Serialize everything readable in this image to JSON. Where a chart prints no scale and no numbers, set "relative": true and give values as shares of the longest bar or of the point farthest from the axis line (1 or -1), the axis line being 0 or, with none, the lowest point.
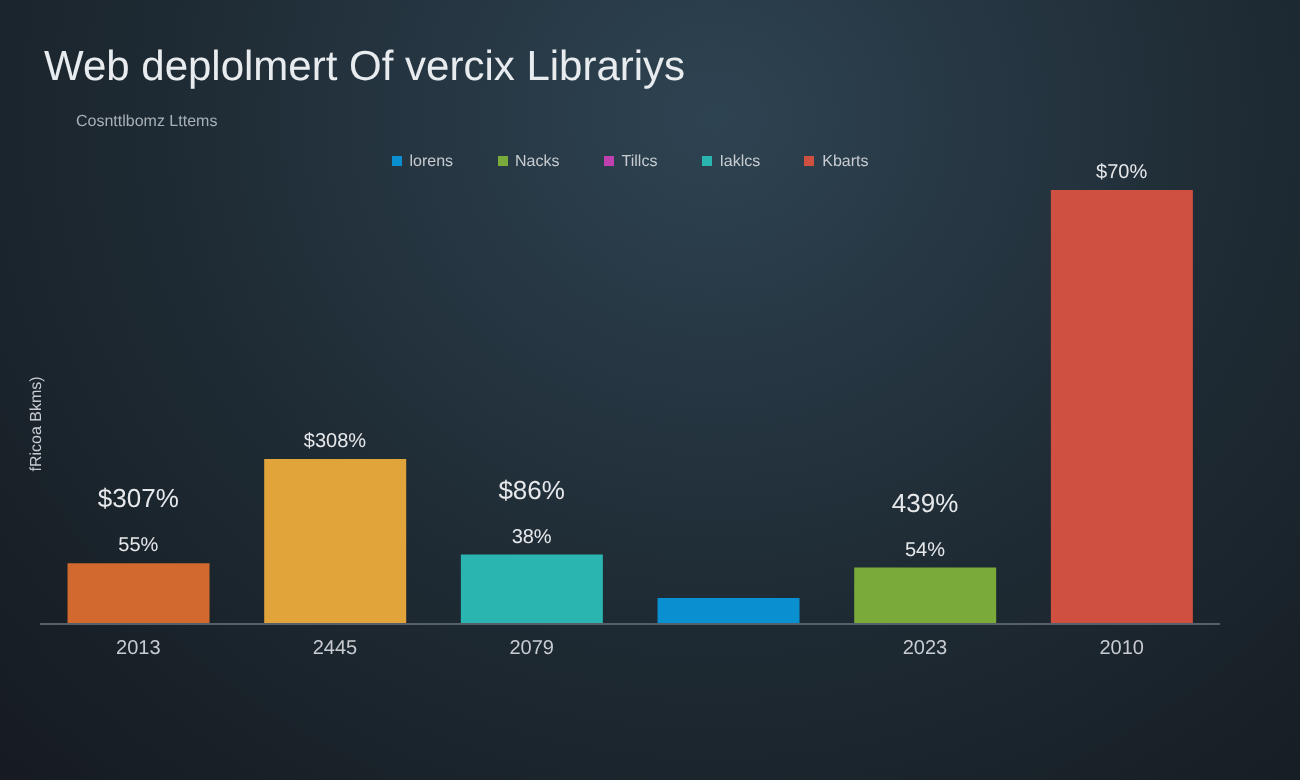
{
  "chart_data": {
    "type": "bar",
    "title": "Web deplolmert Of vercix Librariys",
    "subtitle": "Cosnttlbomz Lttems",
    "ylabel": "fRicoa Bkms)",
    "relative": true,
    "stacked": true,
    "legend": "top",
    "categories": [
      "2013",
      "2445",
      "2079",
      null,
      "2023",
      "2010"
    ],
    "series": [
      {
        "name": "lorens",
        "color": "#0a8fd0",
        "values": [
          null,
          null,
          null,
          0.06,
          null,
          null
        ]
      },
      {
        "name": "Nacks",
        "color": "#7aaa3a",
        "values": [
          null,
          null,
          null,
          null,
          0.13,
          null
        ]
      },
      {
        "name": "Tillcs",
        "color": "#c040b0",
        "values": [
          null,
          null,
          null,
          null,
          null,
          null
        ]
      },
      {
        "name": "Iaklcs",
        "color": "#2ab5b0",
        "values": [
          null,
          null,
          0.16,
          null,
          null,
          null
        ]
      },
      {
        "name": "Kbarts",
        "color": "#cf5040",
        "values": [
          null,
          null,
          null,
          null,
          null,
          1
        ]
      },
      {
        "color": "#d2692e",
        "values": [
          0.14,
          null,
          null,
          null,
          null,
          null
        ]
      },
      {
        "color": "#e0a43a",
        "values": [
          null,
          0.38,
          null,
          null,
          null,
          null
        ]
      }
    ],
    "annotations": [
      {
        "text": "55%",
        "x": "2013",
        "y": 0.14
      },
      {
        "text": "$307%",
        "x": "2013",
        "y": 0.14
      },
      {
        "text": "$308%",
        "x": "2445",
        "y": 0.38
      },
      {
        "text": "38%",
        "x": "2079",
        "y": 0.16
      },
      {
        "text": "$86%",
        "x": "2079",
        "y": 0.16
      },
      {
        "text": "54%",
        "x": "2023",
        "y": 0.13
      },
      {
        "text": "439%",
        "x": "2023",
        "y": 0.13
      },
      {
        "text": "$70%",
        "x": "2010",
        "y": 1
      }
    ]
  }
}
